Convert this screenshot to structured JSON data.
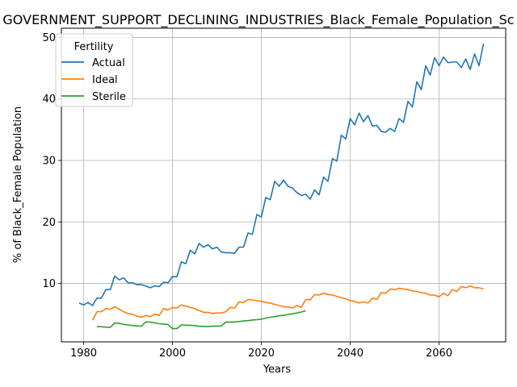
{
  "chart_data": {
    "type": "line",
    "title": "GOVERNMENT_SUPPORT_DECLINING_INDUSTRIES_Black_Female_Population_Sc",
    "xlabel": "Years",
    "ylabel": "% of Black_Female Population",
    "xlim": [
      1975,
      2075
    ],
    "ylim": [
      0.5,
      51.5
    ],
    "xticks": [
      1980,
      2000,
      2020,
      2040,
      2060
    ],
    "yticks": [
      10,
      20,
      30,
      40,
      50
    ],
    "grid": true,
    "legend": {
      "title": "Fertility",
      "placement": "top-left"
    },
    "series": [
      {
        "name": "Actual",
        "color": "#1f77b4",
        "x": [
          1979,
          1980,
          1981,
          1982,
          1983,
          1984,
          1985,
          1986,
          1987,
          1988,
          1989,
          1990,
          1991,
          1992,
          1993,
          1994,
          1995,
          1996,
          1997,
          1998,
          1999,
          2000,
          2001,
          2002,
          2003,
          2004,
          2005,
          2006,
          2007,
          2008,
          2009,
          2010,
          2011,
          2012,
          2013,
          2014,
          2015,
          2016,
          2017,
          2018,
          2019,
          2020,
          2021,
          2022,
          2023,
          2024,
          2025,
          2026,
          2027,
          2028,
          2029,
          2030,
          2031,
          2032,
          2033,
          2034,
          2035,
          2036,
          2037,
          2038,
          2039,
          2040,
          2041,
          2042,
          2043,
          2044,
          2045,
          2046,
          2047,
          2048,
          2049,
          2050,
          2051,
          2052,
          2053,
          2054,
          2055,
          2056,
          2057,
          2058,
          2059,
          2060,
          2061,
          2062,
          2063,
          2064,
          2065,
          2066,
          2067,
          2068,
          2069,
          2070
        ],
        "values": [
          6.8,
          6.5,
          6.9,
          6.4,
          7.6,
          7.6,
          9.0,
          9.0,
          11.2,
          10.6,
          10.9,
          10.1,
          10.1,
          9.8,
          9.8,
          9.6,
          9.3,
          9.6,
          9.5,
          10.2,
          10.1,
          11.1,
          11.1,
          13.5,
          13.2,
          15.4,
          14.8,
          16.5,
          15.9,
          16.3,
          15.6,
          15.9,
          15.1,
          15.0,
          15.0,
          14.9,
          15.9,
          15.9,
          18.2,
          18.0,
          21.2,
          20.8,
          24.0,
          23.6,
          26.6,
          25.8,
          26.8,
          25.8,
          25.5,
          24.8,
          24.3,
          24.5,
          23.7,
          25.2,
          24.4,
          27.3,
          26.6,
          30.3,
          29.9,
          34.1,
          33.5,
          36.8,
          35.8,
          37.7,
          36.3,
          37.3,
          35.6,
          35.7,
          34.7,
          34.6,
          35.2,
          34.7,
          36.8,
          36.2,
          39.6,
          38.7,
          42.8,
          41.5,
          45.4,
          43.9,
          46.7,
          45.4,
          46.8,
          45.9,
          46.0,
          46.0,
          45.1,
          46.5,
          44.8,
          47.3,
          45.4,
          49.0
        ]
      },
      {
        "name": "Ideal",
        "color": "#ff7f0e",
        "x": [
          1982,
          1983,
          1984,
          1985,
          1986,
          1987,
          1988,
          1989,
          1990,
          1991,
          1992,
          1993,
          1994,
          1995,
          1996,
          1997,
          1998,
          1999,
          2000,
          2001,
          2002,
          2003,
          2004,
          2005,
          2006,
          2007,
          2008,
          2009,
          2010,
          2011,
          2012,
          2013,
          2014,
          2015,
          2016,
          2017,
          2018,
          2019,
          2020,
          2021,
          2022,
          2023,
          2024,
          2025,
          2026,
          2027,
          2028,
          2029,
          2030,
          2031,
          2032,
          2033,
          2034,
          2035,
          2036,
          2037,
          2038,
          2039,
          2040,
          2041,
          2042,
          2043,
          2044,
          2045,
          2046,
          2047,
          2048,
          2049,
          2050,
          2051,
          2052,
          2053,
          2054,
          2055,
          2056,
          2057,
          2058,
          2059,
          2060,
          2061,
          2062,
          2063,
          2064,
          2065,
          2066,
          2067,
          2068,
          2069,
          2070
        ],
        "values": [
          4.0,
          5.4,
          5.4,
          5.9,
          5.8,
          6.2,
          5.8,
          5.4,
          5.1,
          5.0,
          4.7,
          4.5,
          4.8,
          4.6,
          5.0,
          4.8,
          5.9,
          5.7,
          6.1,
          6.0,
          6.5,
          6.3,
          6.1,
          5.9,
          5.6,
          5.3,
          5.3,
          5.1,
          5.2,
          5.2,
          5.4,
          6.1,
          6.0,
          7.0,
          6.9,
          7.4,
          7.3,
          7.2,
          7.1,
          6.9,
          6.8,
          6.6,
          6.4,
          6.2,
          6.2,
          6.0,
          6.4,
          6.1,
          7.4,
          7.3,
          8.2,
          8.1,
          8.4,
          8.2,
          8.1,
          7.9,
          7.7,
          7.5,
          7.2,
          7.1,
          6.8,
          7.0,
          6.8,
          7.6,
          7.4,
          8.5,
          8.4,
          9.1,
          9.0,
          9.2,
          9.1,
          9.0,
          8.8,
          8.7,
          8.5,
          8.4,
          8.1,
          8.1,
          7.8,
          8.4,
          8.0,
          9.0,
          8.7,
          9.5,
          9.3,
          9.6,
          9.3,
          9.3,
          9.1
        ]
      },
      {
        "name": "Sterile",
        "color": "#2ca02c",
        "x": [
          1983,
          1984,
          1985,
          1986,
          1987,
          1988,
          1989,
          1990,
          1991,
          1992,
          1993,
          1994,
          1995,
          1996,
          1997,
          1998,
          1999,
          2000,
          2001,
          2002,
          2003,
          2004,
          2005,
          2006,
          2007,
          2008,
          2009,
          2010,
          2011,
          2012,
          2013,
          2014,
          2015,
          2016,
          2017,
          2018,
          2019,
          2020,
          2021,
          2022,
          2023,
          2024,
          2025,
          2026,
          2027,
          2028,
          2029,
          2030
        ],
        "values": [
          3.0,
          2.95,
          2.9,
          2.85,
          3.6,
          3.5,
          3.35,
          3.25,
          3.15,
          3.1,
          3.05,
          3.75,
          3.7,
          3.6,
          3.45,
          3.4,
          3.3,
          2.65,
          2.65,
          3.25,
          3.2,
          3.2,
          3.15,
          3.05,
          3.0,
          3.0,
          3.05,
          3.05,
          3.1,
          3.7,
          3.7,
          3.75,
          3.8,
          3.9,
          3.95,
          4.05,
          4.1,
          4.2,
          4.35,
          4.5,
          4.6,
          4.75,
          4.8,
          4.95,
          5.05,
          5.2,
          5.35,
          5.55
        ]
      }
    ]
  }
}
